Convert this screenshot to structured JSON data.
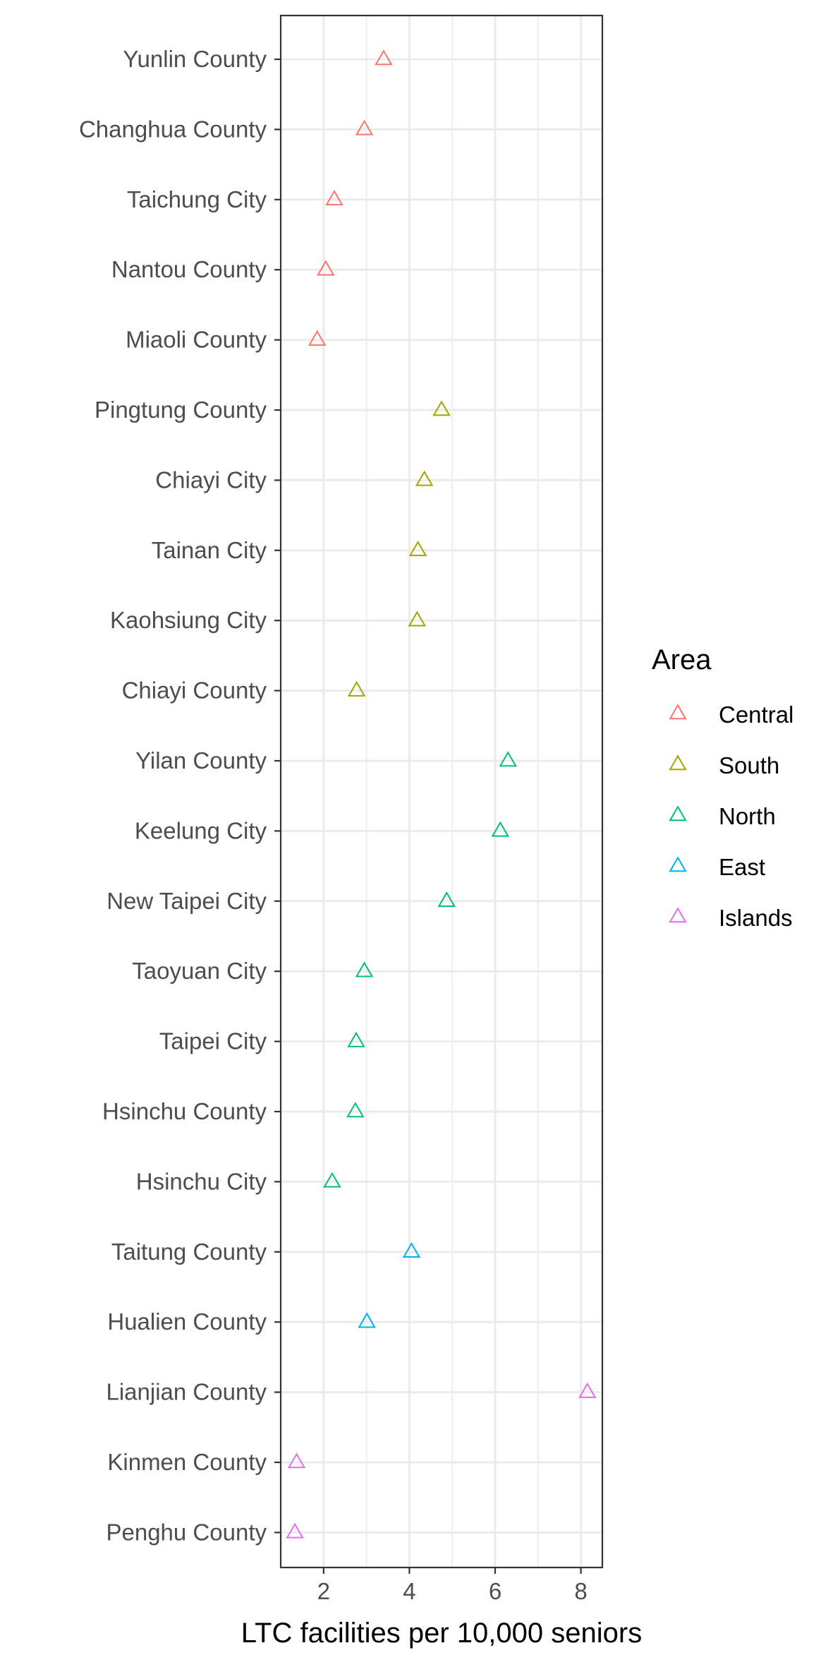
{
  "chart_data": {
    "type": "scatter",
    "marker": "open-triangle",
    "xlabel": "LTC facilities per 10,000 seniors",
    "ylabel": "",
    "xlim": [
      1.0,
      8.5
    ],
    "xticks": [
      2,
      4,
      6,
      8
    ],
    "x_minor_gridlines": [
      3,
      5,
      7
    ],
    "grid": true,
    "legend": {
      "title": "Area",
      "position": "right",
      "entries": [
        {
          "name": "Central",
          "color": "#F8766D"
        },
        {
          "name": "South",
          "color": "#A3A500"
        },
        {
          "name": "North",
          "color": "#00BF7D"
        },
        {
          "name": "East",
          "color": "#00B0F6"
        },
        {
          "name": "Islands",
          "color": "#E76BF3"
        }
      ]
    },
    "categories": [
      "Yunlin County",
      "Changhua County",
      "Taichung City",
      "Nantou County",
      "Miaoli County",
      "Pingtung County",
      "Chiayi City",
      "Tainan City",
      "Kaohsiung City",
      "Chiayi County",
      "Yilan County",
      "Keelung City",
      "New Taipei City",
      "Taoyuan City",
      "Taipei City",
      "Hsinchu County",
      "Hsinchu City",
      "Taitung County",
      "Hualien County",
      "Lianjian County",
      "Kinmen County",
      "Penghu County"
    ],
    "points": [
      {
        "category": "Yunlin County",
        "x": 3.4,
        "area": "Central"
      },
      {
        "category": "Changhua County",
        "x": 2.95,
        "area": "Central"
      },
      {
        "category": "Taichung City",
        "x": 2.25,
        "area": "Central"
      },
      {
        "category": "Nantou County",
        "x": 2.05,
        "area": "Central"
      },
      {
        "category": "Miaoli County",
        "x": 1.85,
        "area": "Central"
      },
      {
        "category": "Pingtung County",
        "x": 4.75,
        "area": "South"
      },
      {
        "category": "Chiayi City",
        "x": 4.35,
        "area": "South"
      },
      {
        "category": "Tainan City",
        "x": 4.2,
        "area": "South"
      },
      {
        "category": "Kaohsiung City",
        "x": 4.18,
        "area": "South"
      },
      {
        "category": "Chiayi County",
        "x": 2.77,
        "area": "South"
      },
      {
        "category": "Yilan County",
        "x": 6.3,
        "area": "North"
      },
      {
        "category": "Keelung City",
        "x": 6.12,
        "area": "North"
      },
      {
        "category": "New Taipei City",
        "x": 4.87,
        "area": "North"
      },
      {
        "category": "Taoyuan City",
        "x": 2.95,
        "area": "North"
      },
      {
        "category": "Taipei City",
        "x": 2.76,
        "area": "North"
      },
      {
        "category": "Hsinchu County",
        "x": 2.74,
        "area": "North"
      },
      {
        "category": "Hsinchu City",
        "x": 2.2,
        "area": "North"
      },
      {
        "category": "Taitung County",
        "x": 4.05,
        "area": "East"
      },
      {
        "category": "Hualien County",
        "x": 3.01,
        "area": "East"
      },
      {
        "category": "Lianjian County",
        "x": 8.15,
        "area": "Islands"
      },
      {
        "category": "Kinmen County",
        "x": 1.37,
        "area": "Islands"
      },
      {
        "category": "Penghu County",
        "x": 1.33,
        "area": "Islands"
      }
    ]
  }
}
